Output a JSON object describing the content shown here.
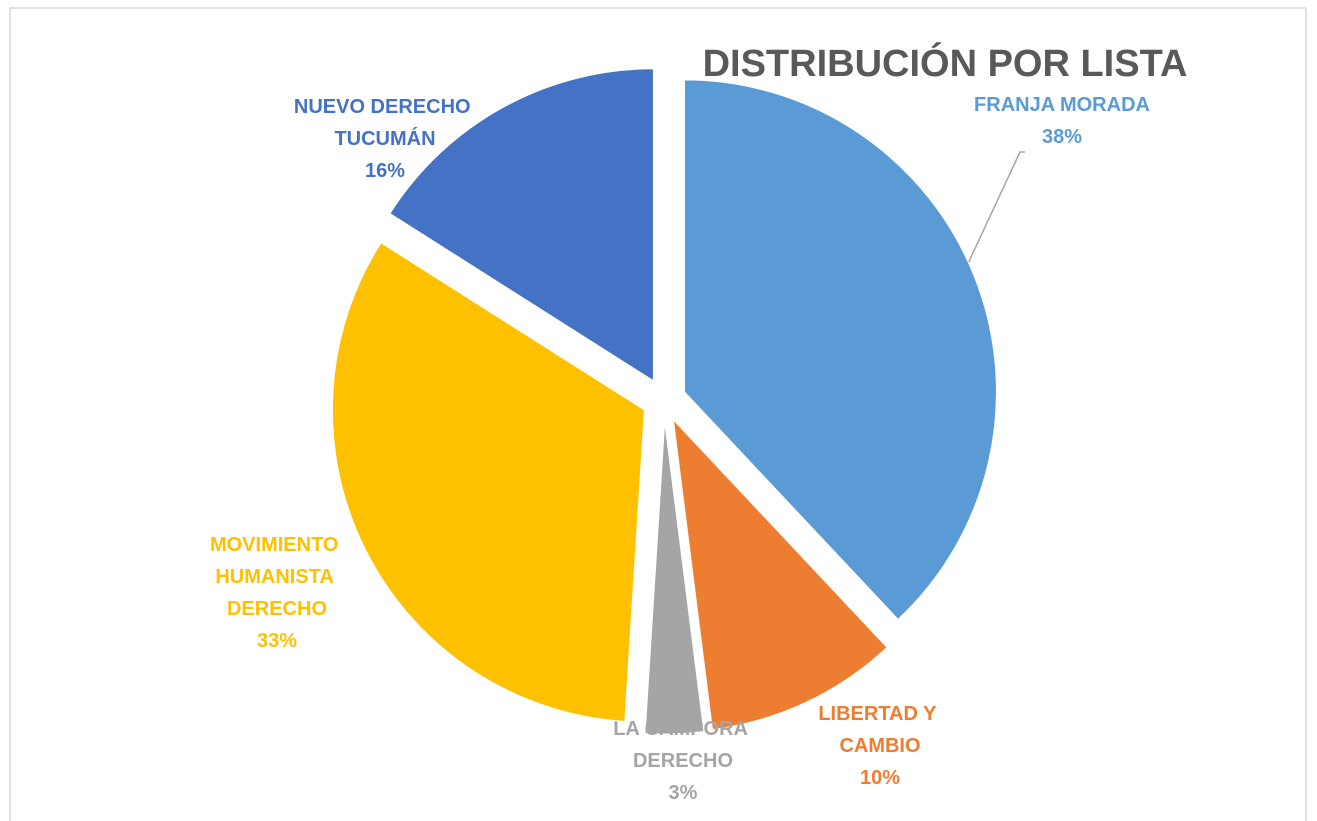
{
  "chart_data": {
    "type": "pie",
    "title": "DISTRIBUCIÓN POR LISTA",
    "categories": [
      "FRANJA MORADA",
      "LIBERTAD Y CAMBIO",
      "LA CAMPORA DERECHO",
      "MOVIMIENTO HUMANISTA DERECHO",
      "NUEVO DERECHO TUCUMÁN"
    ],
    "values": [
      38,
      10,
      3,
      33,
      16
    ],
    "value_labels": [
      "38%",
      "10%",
      "3%",
      "33%",
      "16%"
    ],
    "colors": [
      "#5b9bd5",
      "#ed7d31",
      "#a5a5a5",
      "#ffc000",
      "#4472c4"
    ]
  }
}
